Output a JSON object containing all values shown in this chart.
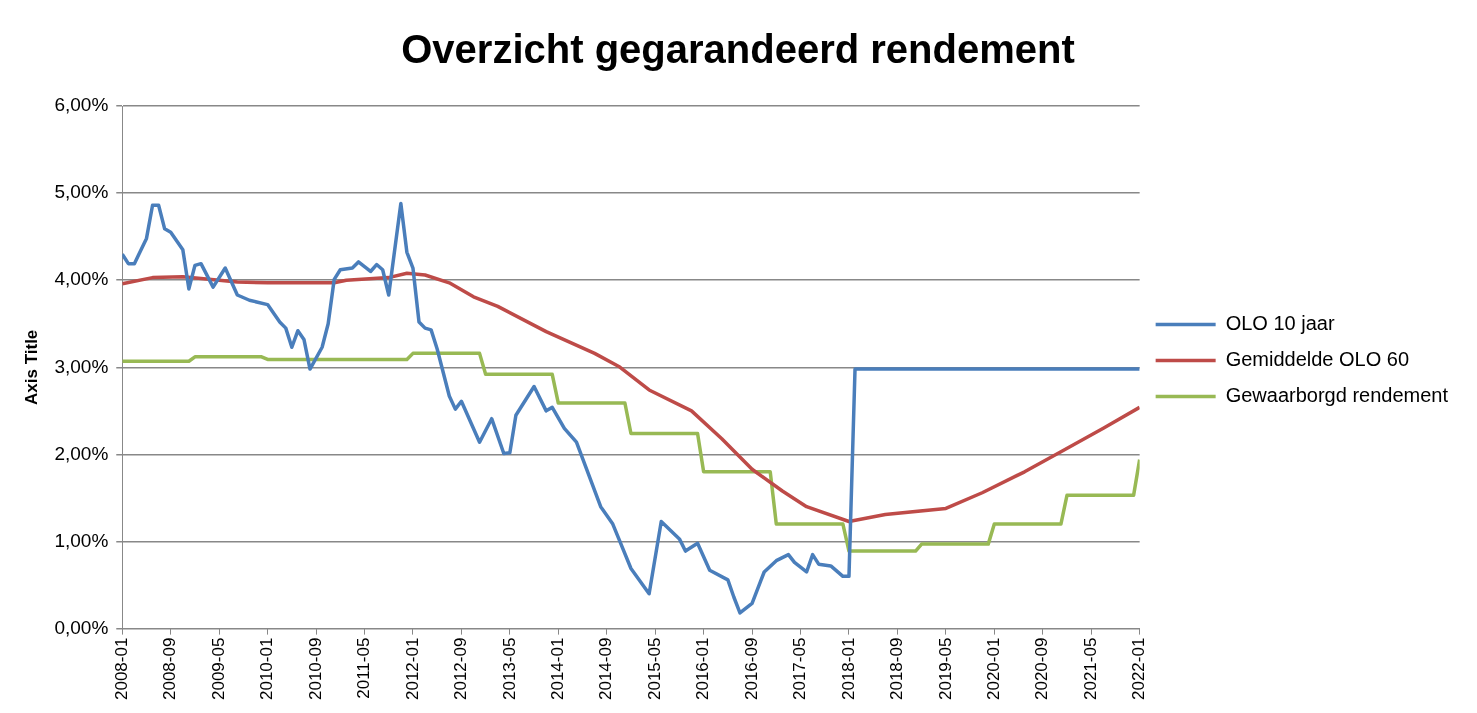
{
  "chart_data": {
    "type": "line",
    "title": "Overzicht gegarandeerd rendement",
    "ylabel": "Axis Title",
    "xlim": [
      "2008-01",
      "2022-01"
    ],
    "xticks": [
      "2008-01",
      "2008-09",
      "2009-05",
      "2010-01",
      "2010-09",
      "2011-05",
      "2012-01",
      "2012-09",
      "2013-05",
      "2014-01",
      "2014-09",
      "2015-05",
      "2016-01",
      "2016-09",
      "2017-05",
      "2018-01",
      "2018-09",
      "2019-05",
      "2020-01",
      "2020-09",
      "2021-05",
      "2022-01"
    ],
    "ylim": [
      0,
      6
    ],
    "yticks": [
      {
        "value": 0,
        "label": "0,00%"
      },
      {
        "value": 1,
        "label": "1,00%"
      },
      {
        "value": 2,
        "label": "2,00%"
      },
      {
        "value": 3,
        "label": "3,00%"
      },
      {
        "value": 4,
        "label": "4,00%"
      },
      {
        "value": 5,
        "label": "5,00%"
      },
      {
        "value": 6,
        "label": "6,00%"
      }
    ],
    "grid": "y",
    "legend": "right",
    "marker": "none",
    "line_style": "solid",
    "series": [
      {
        "name": "OLO 10 jaar",
        "color": "#4a7ebb",
        "x": [
          "2008-01",
          "2008-02",
          "2008-03",
          "2008-05",
          "2008-06",
          "2008-07",
          "2008-08",
          "2008-09",
          "2008-11",
          "2008-12",
          "2009-01",
          "2009-02",
          "2009-04",
          "2009-06",
          "2009-08",
          "2009-10",
          "2010-01",
          "2010-03",
          "2010-04",
          "2010-05",
          "2010-06",
          "2010-07",
          "2010-08",
          "2010-10",
          "2010-11",
          "2010-12",
          "2011-01",
          "2011-03",
          "2011-04",
          "2011-06",
          "2011-07",
          "2011-08",
          "2011-09",
          "2011-11",
          "2011-12",
          "2012-01",
          "2012-02",
          "2012-03",
          "2012-04",
          "2012-05",
          "2012-07",
          "2012-08",
          "2012-09",
          "2012-12",
          "2013-02",
          "2013-04",
          "2013-05",
          "2013-06",
          "2013-09",
          "2013-11",
          "2013-12",
          "2014-02",
          "2014-04",
          "2014-08",
          "2014-10",
          "2014-11",
          "2015-01",
          "2015-04",
          "2015-06",
          "2015-09",
          "2015-10",
          "2015-12",
          "2016-02",
          "2016-05",
          "2016-06",
          "2016-07",
          "2016-09",
          "2016-11",
          "2017-01",
          "2017-03",
          "2017-04",
          "2017-06",
          "2017-07",
          "2017-08",
          "2017-10",
          "2017-12",
          "2018-01",
          "2018-02",
          "2022-01"
        ],
        "values": [
          4.3,
          4.19,
          4.19,
          4.48,
          4.86,
          4.86,
          4.59,
          4.55,
          4.35,
          3.9,
          4.17,
          4.19,
          3.92,
          4.14,
          3.83,
          3.77,
          3.72,
          3.52,
          3.45,
          3.23,
          3.42,
          3.32,
          2.98,
          3.23,
          3.5,
          4.01,
          4.12,
          4.14,
          4.21,
          4.1,
          4.18,
          4.12,
          3.83,
          4.88,
          4.32,
          4.14,
          3.52,
          3.45,
          3.43,
          3.21,
          2.67,
          2.52,
          2.61,
          2.14,
          2.41,
          2.01,
          2.02,
          2.45,
          2.78,
          2.5,
          2.54,
          2.3,
          2.14,
          1.4,
          1.2,
          1.03,
          0.69,
          0.4,
          1.23,
          1.03,
          0.89,
          0.98,
          0.67,
          0.56,
          0.36,
          0.18,
          0.29,
          0.65,
          0.78,
          0.85,
          0.76,
          0.65,
          0.85,
          0.74,
          0.72,
          0.6,
          0.6,
          2.98,
          2.98
        ]
      },
      {
        "name": "Gemiddelde OLO 60",
        "color": "#be4b48",
        "x": [
          "2008-01",
          "2008-06",
          "2008-11",
          "2009-08",
          "2010-01",
          "2010-12",
          "2011-02",
          "2011-09",
          "2011-12",
          "2012-03",
          "2012-07",
          "2012-11",
          "2013-03",
          "2013-11",
          "2014-07",
          "2014-11",
          "2015-04",
          "2015-11",
          "2016-04",
          "2016-09",
          "2017-02",
          "2017-06",
          "2018-01",
          "2018-07",
          "2019-05",
          "2019-11",
          "2020-06",
          "2020-12",
          "2021-07",
          "2022-01"
        ],
        "values": [
          3.96,
          4.03,
          4.04,
          3.98,
          3.97,
          3.97,
          4.0,
          4.03,
          4.08,
          4.06,
          3.97,
          3.81,
          3.7,
          3.41,
          3.16,
          3.01,
          2.74,
          2.5,
          2.18,
          1.83,
          1.58,
          1.4,
          1.23,
          1.31,
          1.38,
          1.56,
          1.8,
          2.03,
          2.3,
          2.54
        ]
      },
      {
        "name": "Gewaarborgd rendement",
        "color": "#98b954",
        "x": [
          "2008-01",
          "2008-12",
          "2009-01",
          "2009-12",
          "2010-01",
          "2011-12",
          "2012-01",
          "2012-12",
          "2013-01",
          "2013-12",
          "2014-01",
          "2014-12",
          "2015-01",
          "2015-12",
          "2016-01",
          "2016-12",
          "2017-01",
          "2017-12",
          "2018-01",
          "2018-12",
          "2019-01",
          "2019-12",
          "2020-01",
          "2020-12",
          "2021-01",
          "2021-12",
          "2022-01"
        ],
        "values": [
          3.07,
          3.07,
          3.12,
          3.12,
          3.09,
          3.09,
          3.16,
          3.16,
          2.92,
          2.92,
          2.59,
          2.59,
          2.24,
          2.24,
          1.8,
          1.8,
          1.2,
          1.2,
          0.89,
          0.89,
          0.97,
          0.97,
          1.2,
          1.2,
          1.53,
          1.53,
          1.94
        ]
      }
    ]
  }
}
